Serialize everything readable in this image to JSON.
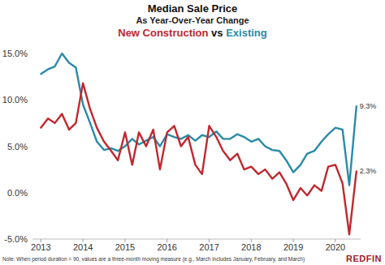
{
  "chart_data": {
    "type": "line",
    "title": "Median Sale Price",
    "subtitle": "As Year-Over-Year Change",
    "legend_separator": "vs",
    "note": "Note: When period duration = 90, values are a three-month moving measure (e.g., March includes January, February, and March)",
    "source": "REDFIN",
    "legend": "top",
    "grid": false,
    "x": [
      2013.0,
      2013.17,
      2013.33,
      2013.5,
      2013.67,
      2013.83,
      2014.0,
      2014.17,
      2014.33,
      2014.5,
      2014.67,
      2014.83,
      2015.0,
      2015.17,
      2015.33,
      2015.5,
      2015.67,
      2015.83,
      2016.0,
      2016.17,
      2016.33,
      2016.5,
      2016.67,
      2016.83,
      2017.0,
      2017.17,
      2017.33,
      2017.5,
      2017.67,
      2017.83,
      2018.0,
      2018.17,
      2018.33,
      2018.5,
      2018.67,
      2018.83,
      2019.0,
      2019.17,
      2019.33,
      2019.5,
      2019.67,
      2019.83,
      2020.0,
      2020.17,
      2020.33,
      2020.5
    ],
    "xlim": [
      2012.8,
      2020.6
    ],
    "xticks": [
      2013,
      2014,
      2015,
      2016,
      2017,
      2018,
      2019,
      2020
    ],
    "ylim": [
      -5,
      15
    ],
    "yticks": [
      {
        "value": -5,
        "label": "-5.0%"
      },
      {
        "value": 0,
        "label": "0.0%"
      },
      {
        "value": 5,
        "label": "5.0%"
      },
      {
        "value": 10,
        "label": "10.0%"
      },
      {
        "value": 15,
        "label": "15.0%"
      }
    ],
    "series": [
      {
        "name": "New Construction",
        "color": "#c1272d",
        "values": [
          7.0,
          8.0,
          7.5,
          8.5,
          6.8,
          7.5,
          11.8,
          9.0,
          7.0,
          5.5,
          4.5,
          3.5,
          6.5,
          3.0,
          6.5,
          5.0,
          6.8,
          2.5,
          6.5,
          7.2,
          5.0,
          6.0,
          3.0,
          2.0,
          7.2,
          6.0,
          4.5,
          3.5,
          4.2,
          2.5,
          2.8,
          2.0,
          2.5,
          1.5,
          2.2,
          1.0,
          -0.8,
          0.5,
          -0.3,
          0.8,
          0.2,
          2.8,
          3.0,
          1.0,
          -4.5,
          2.3
        ],
        "value_labels": [
          null,
          null,
          null,
          null,
          null,
          null,
          null,
          null,
          null,
          null,
          null,
          null,
          null,
          null,
          null,
          null,
          null,
          null,
          null,
          null,
          null,
          null,
          null,
          null,
          null,
          null,
          null,
          null,
          null,
          null,
          null,
          null,
          null,
          null,
          null,
          null,
          null,
          null,
          null,
          null,
          null,
          null,
          null,
          null,
          null,
          "2.3%"
        ]
      },
      {
        "name": "Existing",
        "color": "#2a8aa8",
        "values": [
          12.8,
          13.3,
          13.6,
          15.0,
          14.0,
          13.5,
          9.5,
          7.5,
          5.5,
          4.6,
          4.8,
          4.5,
          5.0,
          5.8,
          5.2,
          5.6,
          6.0,
          5.0,
          6.3,
          6.0,
          5.8,
          6.2,
          5.6,
          6.2,
          6.0,
          6.6,
          5.8,
          5.8,
          6.3,
          6.0,
          5.5,
          5.8,
          5.0,
          4.6,
          4.5,
          3.5,
          2.2,
          3.0,
          4.2,
          4.5,
          5.5,
          6.3,
          7.0,
          6.8,
          0.8,
          9.3
        ],
        "value_labels": [
          null,
          null,
          null,
          null,
          null,
          null,
          null,
          null,
          null,
          null,
          null,
          null,
          null,
          null,
          null,
          null,
          null,
          null,
          null,
          null,
          null,
          null,
          null,
          null,
          null,
          null,
          null,
          null,
          null,
          null,
          null,
          null,
          null,
          null,
          null,
          null,
          null,
          null,
          null,
          null,
          null,
          null,
          null,
          null,
          null,
          "9.3%"
        ]
      }
    ]
  }
}
